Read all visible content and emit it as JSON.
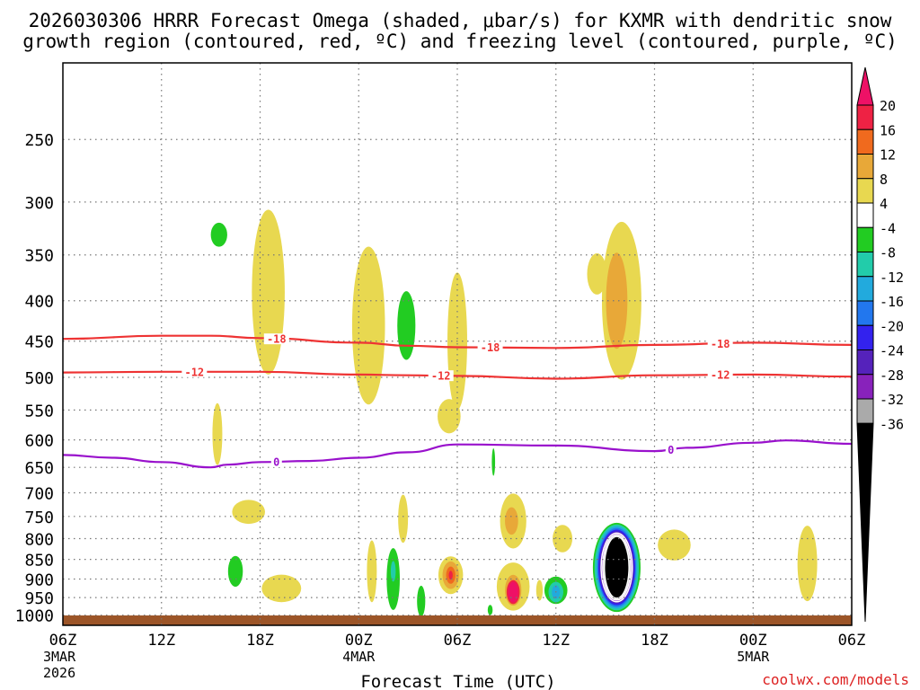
{
  "chart_data": {
    "type": "contour",
    "title_line1": "2026030306 HRRR Forecast Omega (shaded, μbar/s) for KXMR with dendritic snow",
    "title_line2": "growth region (contoured, red, ºC) and freezing level (contoured, purple, ºC)",
    "xlabel": "Forecast Time (UTC)",
    "credit": "coolwx.com/models",
    "x_range_hours": [
      0,
      48
    ],
    "x_ticks": [
      {
        "h": 0,
        "label": "06Z",
        "date": "3MAR",
        "year": "2026"
      },
      {
        "h": 6,
        "label": "12Z",
        "date": "",
        "year": ""
      },
      {
        "h": 12,
        "label": "18Z",
        "date": "",
        "year": ""
      },
      {
        "h": 18,
        "label": "00Z",
        "date": "4MAR",
        "year": ""
      },
      {
        "h": 24,
        "label": "06Z",
        "date": "",
        "year": ""
      },
      {
        "h": 30,
        "label": "12Z",
        "date": "",
        "year": ""
      },
      {
        "h": 36,
        "label": "18Z",
        "date": "",
        "year": ""
      },
      {
        "h": 42,
        "label": "00Z",
        "date": "5MAR",
        "year": ""
      },
      {
        "h": 48,
        "label": "06Z",
        "date": "",
        "year": ""
      }
    ],
    "y_range_mb": [
      200,
      1030
    ],
    "y_scale": "log",
    "y_ticks": [
      "250",
      "300",
      "350",
      "400",
      "450",
      "500",
      "550",
      "600",
      "650",
      "700",
      "750",
      "800",
      "850",
      "900",
      "950",
      "1000"
    ],
    "colorbar_labels": [
      "20",
      "16",
      "12",
      "8",
      "4",
      "-4",
      "-8",
      "-12",
      "-16",
      "-20",
      "-24",
      "-28",
      "-32",
      "-36"
    ],
    "colorbar_colors": [
      "#ee1166",
      "#ee2244",
      "#f06a1e",
      "#e8a838",
      "#e8d850",
      "#ffffff",
      "#22cc22",
      "#22ccaa",
      "#22aadd",
      "#2277ee",
      "#3322ee",
      "#5522bb",
      "#8822bb",
      "#aaaaaa",
      "#000000"
    ],
    "isotherms": [
      {
        "name": "-18C",
        "color": "#ee3333",
        "label": "-18",
        "label_hours": [
          13,
          26,
          40
        ],
        "hours": [
          0,
          6,
          9,
          12,
          18,
          21,
          24,
          30,
          36,
          42,
          48
        ],
        "mb": [
          447,
          443,
          443,
          446,
          452,
          456,
          458,
          459,
          455,
          452,
          455
        ]
      },
      {
        "name": "-12C",
        "color": "#ee3333",
        "label": "-12",
        "label_hours": [
          8,
          23,
          40
        ],
        "hours": [
          0,
          6,
          12,
          18,
          21,
          24,
          30,
          36,
          42,
          48
        ],
        "mb": [
          493,
          492,
          492,
          496,
          497,
          498,
          502,
          497,
          496,
          499
        ]
      },
      {
        "name": "0C",
        "color": "#9911cc",
        "label": "0",
        "label_hours": [
          13,
          37
        ],
        "hours": [
          0,
          3,
          6,
          9,
          10,
          12,
          15,
          18,
          21,
          24,
          30,
          36,
          38,
          42,
          44,
          48
        ],
        "mb": [
          627,
          632,
          640,
          650,
          645,
          640,
          638,
          632,
          622,
          608,
          610,
          620,
          614,
          605,
          601,
          607
        ]
      }
    ],
    "omega_cells": [
      {
        "h": 9.5,
        "mb": 330,
        "hw": 0.5,
        "hh": 0.035,
        "value": -6
      },
      {
        "h": 12.5,
        "mb": 390,
        "hw": 1.0,
        "hh": 0.24,
        "value": 5
      },
      {
        "h": 9.4,
        "mb": 590,
        "hw": 0.3,
        "hh": 0.09,
        "value": 5
      },
      {
        "h": 18.6,
        "mb": 430,
        "hw": 1.0,
        "hh": 0.23,
        "value": 5
      },
      {
        "h": 20.9,
        "mb": 430,
        "hw": 0.55,
        "hh": 0.1,
        "value": -6
      },
      {
        "h": 24.0,
        "mb": 450,
        "hw": 0.6,
        "hh": 0.2,
        "value": 5
      },
      {
        "h": 23.5,
        "mb": 560,
        "hw": 0.7,
        "hh": 0.05,
        "value": 5
      },
      {
        "h": 32.5,
        "mb": 370,
        "hw": 0.6,
        "hh": 0.06,
        "value": 5
      },
      {
        "h": 34.0,
        "mb": 400,
        "hw": 1.2,
        "hh": 0.23,
        "value": 5
      },
      {
        "h": 33.7,
        "mb": 400,
        "hw": 0.65,
        "hh": 0.14,
        "value": 9
      },
      {
        "h": 26.2,
        "mb": 640,
        "hw": 0.1,
        "hh": 0.04,
        "value": -6
      },
      {
        "h": 11.3,
        "mb": 740,
        "hw": 1.0,
        "hh": 0.035,
        "value": 5
      },
      {
        "h": 10.5,
        "mb": 880,
        "hw": 0.45,
        "hh": 0.045,
        "value": -6
      },
      {
        "h": 13.3,
        "mb": 925,
        "hw": 1.2,
        "hh": 0.04,
        "value": 5
      },
      {
        "h": 20.7,
        "mb": 755,
        "hw": 0.3,
        "hh": 0.07,
        "value": 5
      },
      {
        "h": 18.8,
        "mb": 880,
        "hw": 0.3,
        "hh": 0.09,
        "value": 5
      },
      {
        "h": 20.1,
        "mb": 900,
        "hw": 0.4,
        "hh": 0.09,
        "value": -6
      },
      {
        "h": 20.1,
        "mb": 880,
        "hw": 0.15,
        "hh": 0.03,
        "value": -10
      },
      {
        "h": 21.8,
        "mb": 960,
        "hw": 0.25,
        "hh": 0.045,
        "value": -6
      },
      {
        "h": 23.6,
        "mb": 890,
        "hw": 0.75,
        "hh": 0.055,
        "value": 5
      },
      {
        "h": 23.6,
        "mb": 890,
        "hw": 0.5,
        "hh": 0.04,
        "value": 9
      },
      {
        "h": 23.6,
        "mb": 890,
        "hw": 0.28,
        "hh": 0.025,
        "value": 13
      },
      {
        "h": 23.6,
        "mb": 890,
        "hw": 0.12,
        "hh": 0.013,
        "value": 17
      },
      {
        "h": 27.4,
        "mb": 760,
        "hw": 0.8,
        "hh": 0.08,
        "value": 5
      },
      {
        "h": 27.3,
        "mb": 760,
        "hw": 0.4,
        "hh": 0.04,
        "value": 9
      },
      {
        "h": 27.4,
        "mb": 920,
        "hw": 1.0,
        "hh": 0.07,
        "value": 5
      },
      {
        "h": 27.4,
        "mb": 930,
        "hw": 0.5,
        "hh": 0.045,
        "value": 9
      },
      {
        "h": 27.4,
        "mb": 935,
        "hw": 0.4,
        "hh": 0.035,
        "value": 17
      },
      {
        "h": 27.4,
        "mb": 935,
        "hw": 0.3,
        "hh": 0.03,
        "value": 21
      },
      {
        "h": 26.0,
        "mb": 985,
        "hw": 0.15,
        "hh": 0.015,
        "value": -6
      },
      {
        "h": 29.0,
        "mb": 930,
        "hw": 0.2,
        "hh": 0.03,
        "value": 5
      },
      {
        "h": 30.4,
        "mb": 800,
        "hw": 0.6,
        "hh": 0.04,
        "value": 5
      },
      {
        "h": 30.0,
        "mb": 930,
        "hw": 0.7,
        "hh": 0.04,
        "value": -6
      },
      {
        "h": 30.0,
        "mb": 935,
        "hw": 0.45,
        "hh": 0.03,
        "value": -10
      },
      {
        "h": 30.0,
        "mb": 935,
        "hw": 0.25,
        "hh": 0.02,
        "value": -14
      },
      {
        "h": 33.7,
        "mb": 870,
        "hw": 1.45,
        "hh": 0.13,
        "value": -6
      },
      {
        "h": 33.7,
        "mb": 870,
        "hw": 1.35,
        "hh": 0.125,
        "value": -10
      },
      {
        "h": 33.7,
        "mb": 870,
        "hw": 1.25,
        "hh": 0.12,
        "value": -14
      },
      {
        "h": 33.7,
        "mb": 870,
        "hw": 1.18,
        "hh": 0.115,
        "value": -18
      },
      {
        "h": 33.7,
        "mb": 870,
        "hw": 1.12,
        "hh": 0.11,
        "value": -22
      },
      {
        "h": 33.7,
        "mb": 870,
        "hw": 1.05,
        "hh": 0.105,
        "value": -26
      },
      {
        "h": 33.7,
        "mb": 870,
        "hw": 0.95,
        "hh": 0.1,
        "value": -30
      },
      {
        "h": 33.7,
        "mb": 870,
        "hw": 0.85,
        "hh": 0.095,
        "value": -34
      },
      {
        "h": 33.7,
        "mb": 870,
        "hw": 0.75,
        "hh": 0.09,
        "value": -38
      },
      {
        "h": 37.2,
        "mb": 815,
        "hw": 1.0,
        "hh": 0.045,
        "value": 5
      },
      {
        "h": 45.3,
        "mb": 860,
        "hw": 0.6,
        "hh": 0.11,
        "value": 5
      }
    ]
  }
}
